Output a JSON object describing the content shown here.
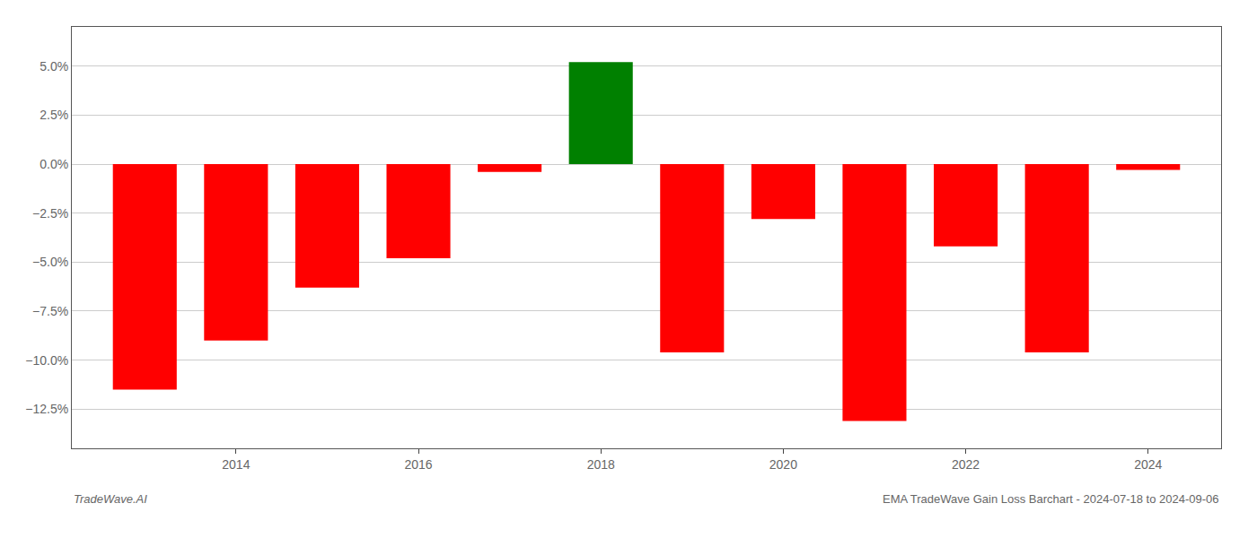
{
  "chart_data": {
    "type": "bar",
    "x": [
      2013,
      2014,
      2015,
      2016,
      2017,
      2018,
      2019,
      2020,
      2021,
      2022,
      2023,
      2024
    ],
    "values": [
      -11.5,
      -9.0,
      -6.3,
      -4.8,
      -0.4,
      5.2,
      -9.6,
      -2.8,
      -13.1,
      -4.2,
      -9.6,
      -0.3
    ],
    "colors": [
      "#FF0000",
      "#FF0000",
      "#FF0000",
      "#FF0000",
      "#FF0000",
      "#008000",
      "#FF0000",
      "#FF0000",
      "#FF0000",
      "#FF0000",
      "#FF0000",
      "#FF0000"
    ],
    "xlim": [
      2012.2,
      2024.8
    ],
    "xticks": [
      2014,
      2016,
      2018,
      2020,
      2022,
      2024
    ],
    "ylim": [
      -14.5,
      7.0
    ],
    "yticks": [
      {
        "value": -12.5,
        "label": "−12.5%"
      },
      {
        "value": -10.0,
        "label": "−10.0%"
      },
      {
        "value": -7.5,
        "label": "−7.5%"
      },
      {
        "value": -5.0,
        "label": "−5.0%"
      },
      {
        "value": -2.5,
        "label": "−2.5%"
      },
      {
        "value": 0.0,
        "label": "0.0%"
      },
      {
        "value": 2.5,
        "label": "2.5%"
      },
      {
        "value": 5.0,
        "label": "5.0%"
      }
    ],
    "grid": "y",
    "annotations": [
      "TradeWave.AI",
      "EMA TradeWave Gain Loss Barchart - 2024-07-18 to 2024-09-06"
    ]
  }
}
